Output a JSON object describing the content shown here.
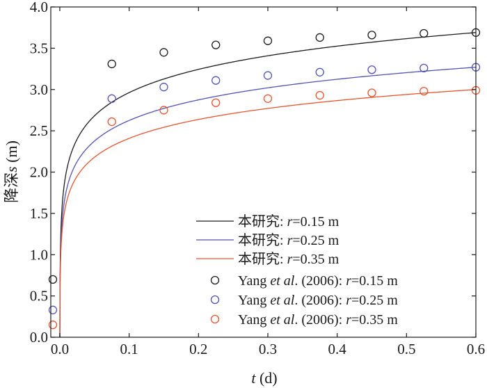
{
  "chart_data": {
    "type": "line",
    "xlabel_var": "t",
    "xlabel_unit": " (d)",
    "ylabel_text": "降深",
    "ylabel_var": "s",
    "ylabel_unit": " (m)",
    "xlim": [
      -0.013,
      0.6
    ],
    "ylim": [
      0.0,
      4.0
    ],
    "x_ticks": [
      0.0,
      0.1,
      0.2,
      0.3,
      0.4,
      0.5,
      0.6
    ],
    "x_tick_labels": [
      "0.0",
      "0.1",
      "0.2",
      "0.3",
      "0.4",
      "0.5",
      "0.6"
    ],
    "y_ticks": [
      0.0,
      0.5,
      1.0,
      1.5,
      2.0,
      2.5,
      3.0,
      3.5,
      4.0
    ],
    "y_tick_labels": [
      "0.0",
      "0.5",
      "1.0",
      "1.5",
      "2.0",
      "2.5",
      "3.0",
      "3.5",
      "4.0"
    ],
    "grid": false,
    "legend_position": "bottom-right",
    "series": [
      {
        "kind": "line",
        "label_prefix": "本研究: ",
        "r_value": "=0.15 m",
        "color": "#1a1a1a",
        "params": {
          "a": 3.69,
          "b": 0.225,
          "c": 1.0
        },
        "x": [
          0.0,
          0.075,
          0.15,
          0.225,
          0.3,
          0.375,
          0.45,
          0.525,
          0.6
        ]
      },
      {
        "kind": "line",
        "label_prefix": "本研究: ",
        "r_value": "=0.25 m",
        "color": "#5151b5",
        "params": {
          "a": 3.27,
          "b": 0.22,
          "c": 1.1
        },
        "x": [
          0.0,
          0.075,
          0.15,
          0.225,
          0.3,
          0.375,
          0.45,
          0.525,
          0.6
        ]
      },
      {
        "kind": "line",
        "label_prefix": "本研究: ",
        "r_value": "=0.35 m",
        "color": "#e8532e",
        "params": {
          "a": 3.0,
          "b": 0.226,
          "c": 1.3
        },
        "x": [
          0.0,
          0.075,
          0.15,
          0.225,
          0.3,
          0.375,
          0.45,
          0.525,
          0.6
        ]
      },
      {
        "kind": "marker",
        "label_prefix": "Yang ",
        "label_etal": "et al",
        "label_suffix": ". (2006): ",
        "r_value": "=0.15 m",
        "color": "#1a1a1a",
        "x": [
          -0.01,
          0.075,
          0.15,
          0.225,
          0.3,
          0.375,
          0.45,
          0.525,
          0.6
        ],
        "y": [
          0.7,
          3.31,
          3.45,
          3.54,
          3.59,
          3.63,
          3.66,
          3.68,
          3.69
        ]
      },
      {
        "kind": "marker",
        "label_prefix": "Yang ",
        "label_etal": "et al",
        "label_suffix": ". (2006): ",
        "r_value": "=0.25 m",
        "color": "#5151b5",
        "x": [
          -0.01,
          0.075,
          0.15,
          0.225,
          0.3,
          0.375,
          0.45,
          0.525,
          0.6
        ],
        "y": [
          0.33,
          2.89,
          3.03,
          3.11,
          3.17,
          3.21,
          3.24,
          3.26,
          3.27
        ]
      },
      {
        "kind": "marker",
        "label_prefix": "Yang ",
        "label_etal": "et al",
        "label_suffix": ". (2006): ",
        "r_value": "=0.35 m",
        "color": "#e8532e",
        "x": [
          -0.01,
          0.075,
          0.15,
          0.225,
          0.3,
          0.375,
          0.45,
          0.525,
          0.6
        ],
        "y": [
          0.15,
          2.61,
          2.75,
          2.84,
          2.89,
          2.93,
          2.96,
          2.98,
          2.99
        ]
      }
    ]
  }
}
